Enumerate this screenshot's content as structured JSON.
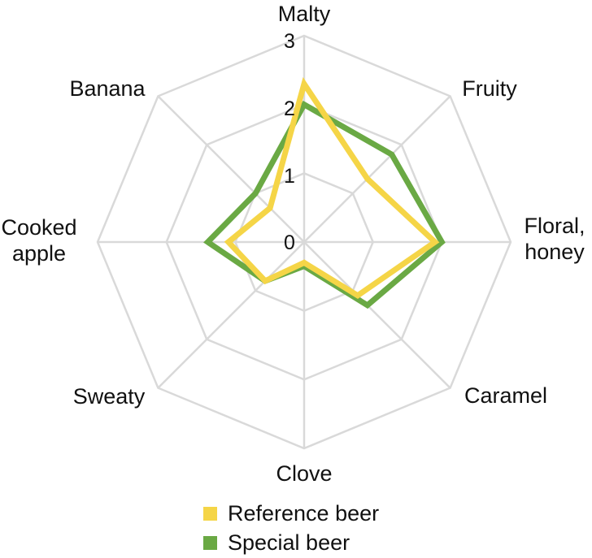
{
  "chart_data": {
    "type": "radar",
    "axes": [
      "Malty",
      "Fruity",
      "Floral, honey",
      "Caramel",
      "Clove",
      "Sweaty",
      "Cooked apple",
      "Banana"
    ],
    "ticks": [
      "0",
      "1",
      "2",
      "3"
    ],
    "range": [
      0,
      3
    ],
    "series": [
      {
        "name": "Reference beer",
        "color": "#f5d547",
        "values": [
          2.3,
          1.3,
          1.9,
          1.1,
          0.3,
          0.8,
          1.1,
          0.7
        ]
      },
      {
        "name": "Special beer",
        "color": "#6aa944",
        "values": [
          2.0,
          1.8,
          2.0,
          1.3,
          0.35,
          0.8,
          1.4,
          1.0
        ]
      }
    ],
    "grid": true,
    "legend": "bottom"
  }
}
